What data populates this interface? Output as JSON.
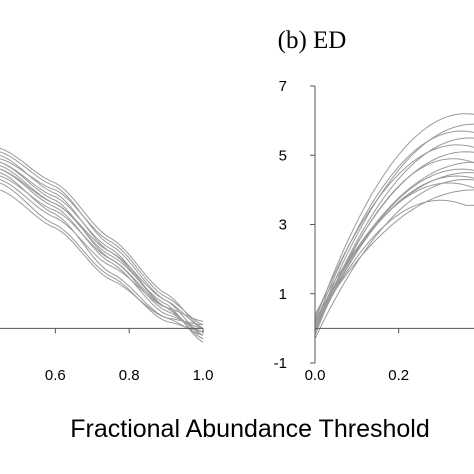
{
  "chart_data": [
    {
      "panel": "a",
      "type": "line",
      "title": "",
      "xlabel": "",
      "ylabel": "",
      "xlim": [
        0.45,
        1.0
      ],
      "ylim": [
        -1.0,
        7.0
      ],
      "xticks": [
        0.6,
        0.8,
        1.0
      ],
      "xtick_labels": [
        "0.6",
        "0.8",
        "1.0"
      ],
      "yticks": [],
      "series_color": "#9a9a9a",
      "series": [
        {
          "x": [
            0.45,
            0.6,
            0.75,
            0.9,
            1.0
          ],
          "y": [
            5.1,
            4.1,
            2.4,
            0.8,
            -0.2
          ]
        },
        {
          "x": [
            0.45,
            0.6,
            0.75,
            0.9,
            1.0
          ],
          "y": [
            5.0,
            3.9,
            2.2,
            0.6,
            -0.3
          ]
        },
        {
          "x": [
            0.45,
            0.6,
            0.75,
            0.9,
            1.0
          ],
          "y": [
            4.8,
            3.7,
            2.0,
            0.5,
            -0.1
          ]
        },
        {
          "x": [
            0.45,
            0.6,
            0.75,
            0.9,
            1.0
          ],
          "y": [
            4.6,
            3.5,
            1.9,
            0.4,
            0.0
          ]
        },
        {
          "x": [
            0.45,
            0.6,
            0.75,
            0.9,
            1.0
          ],
          "y": [
            4.9,
            4.0,
            2.5,
            0.9,
            0.1
          ]
        },
        {
          "x": [
            0.45,
            0.6,
            0.75,
            0.9,
            1.0
          ],
          "y": [
            4.5,
            3.3,
            1.6,
            0.3,
            -0.2
          ]
        },
        {
          "x": [
            0.45,
            0.6,
            0.75,
            0.9,
            1.0
          ],
          "y": [
            4.3,
            3.2,
            1.8,
            0.6,
            0.2
          ]
        },
        {
          "x": [
            0.45,
            0.6,
            0.75,
            0.9,
            1.0
          ],
          "y": [
            4.7,
            3.6,
            2.1,
            0.7,
            -0.4
          ]
        },
        {
          "x": [
            0.45,
            0.6,
            0.75,
            0.9,
            1.0
          ],
          "y": [
            5.2,
            4.2,
            2.6,
            1.0,
            0.0
          ]
        },
        {
          "x": [
            0.45,
            0.6,
            0.75,
            0.9,
            1.0
          ],
          "y": [
            4.2,
            3.0,
            1.5,
            0.2,
            -0.1
          ]
        },
        {
          "x": [
            0.45,
            0.6,
            0.75,
            0.9,
            1.0
          ],
          "y": [
            4.4,
            3.4,
            2.0,
            0.6,
            -0.3
          ]
        },
        {
          "x": [
            0.45,
            0.6,
            0.75,
            0.9,
            1.0
          ],
          "y": [
            4.0,
            2.9,
            1.4,
            0.3,
            0.1
          ]
        },
        {
          "x": [
            0.45,
            0.6,
            0.75,
            0.9,
            1.0
          ],
          "y": [
            4.8,
            3.8,
            2.3,
            0.6,
            -0.2
          ]
        },
        {
          "x": [
            0.45,
            0.6,
            0.75,
            0.9,
            1.0
          ],
          "y": [
            4.6,
            3.6,
            2.2,
            0.8,
            0.0
          ]
        }
      ]
    },
    {
      "panel": "b",
      "type": "line",
      "title": "(b) ED",
      "xlabel": "",
      "ylabel": "",
      "xlim": [
        0.0,
        0.38
      ],
      "ylim": [
        -1.0,
        7.0
      ],
      "xticks": [
        0.0,
        0.2
      ],
      "xtick_labels": [
        "0.0",
        "0.2"
      ],
      "yticks": [
        -1,
        1,
        3,
        5,
        7
      ],
      "ytick_labels": [
        "-1",
        "1",
        "3",
        "5",
        "7"
      ],
      "series_color": "#9a9a9a",
      "series": [
        {
          "peak_x": 0.36,
          "peak_y": 6.2,
          "y0": 0.2
        },
        {
          "peak_x": 0.38,
          "peak_y": 5.9,
          "y0": 0.0
        },
        {
          "peak_x": 0.35,
          "peak_y": 5.7,
          "y0": 0.1
        },
        {
          "peak_x": 0.37,
          "peak_y": 5.5,
          "y0": -0.1
        },
        {
          "peak_x": 0.34,
          "peak_y": 5.3,
          "y0": 0.3
        },
        {
          "peak_x": 0.36,
          "peak_y": 5.1,
          "y0": 0.0
        },
        {
          "peak_x": 0.33,
          "peak_y": 4.9,
          "y0": -0.2
        },
        {
          "peak_x": 0.38,
          "peak_y": 4.8,
          "y0": 0.2
        },
        {
          "peak_x": 0.35,
          "peak_y": 4.6,
          "y0": -0.1
        },
        {
          "peak_x": 0.37,
          "peak_y": 4.5,
          "y0": 0.4
        },
        {
          "peak_x": 0.34,
          "peak_y": 4.4,
          "y0": 0.0
        },
        {
          "peak_x": 0.36,
          "peak_y": 4.3,
          "y0": -0.3
        },
        {
          "peak_x": 0.32,
          "peak_y": 4.2,
          "y0": 0.1
        },
        {
          "peak_x": 0.38,
          "peak_y": 4.0,
          "y0": 0.2
        },
        {
          "peak_x": 0.3,
          "peak_y": 3.7,
          "y0": 0.0
        }
      ]
    }
  ],
  "shared_xlabel": "Fractional Abundance Threshold"
}
